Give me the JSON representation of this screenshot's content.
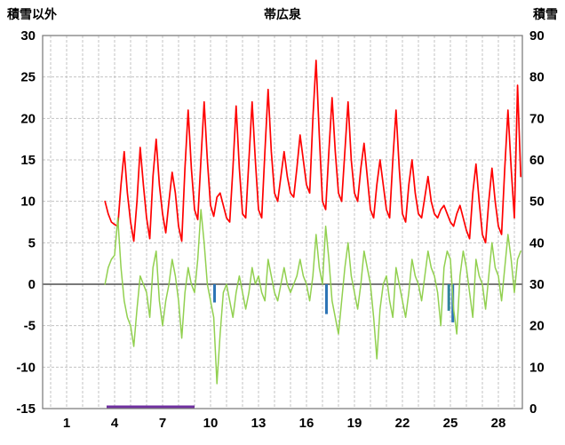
{
  "header": {
    "left_axis_title": "積雪以外",
    "chart_title": "帯広泉",
    "right_axis_title": "積雪"
  },
  "chart_data": {
    "type": "line",
    "title": "帯広泉",
    "grid": true,
    "grid_color": "#c3c3c3",
    "border_color": "#7f7f7f",
    "zero_line_color": "#4d4d4d",
    "left_axis": {
      "label": "積雪以外",
      "min": -15,
      "max": 30,
      "tick_step": 5,
      "ticks": [
        30,
        25,
        20,
        15,
        10,
        5,
        0,
        -5,
        -10,
        -15
      ]
    },
    "right_axis": {
      "label": "積雪",
      "min": 0,
      "max": 90,
      "tick_step": 10,
      "ticks": [
        90,
        80,
        70,
        60,
        50,
        40,
        30,
        20,
        10,
        0
      ]
    },
    "x_axis": {
      "min": -0.5,
      "max": 29.5,
      "gridline_step": 1,
      "tick_labels": [
        1,
        4,
        7,
        10,
        13,
        16,
        19,
        22,
        25,
        28
      ]
    },
    "series": [
      {
        "name": "red-temperature-line",
        "color": "#ff0000",
        "width": 1.7,
        "axis": "left",
        "x_start": 3.4,
        "x_step": 0.2,
        "values": [
          10,
          8.5,
          7.5,
          7.2,
          7,
          12,
          16,
          11,
          7.5,
          5.2,
          10,
          16.5,
          12,
          8,
          5.5,
          13,
          17.5,
          12,
          8.5,
          6.2,
          10,
          13.5,
          11,
          7,
          5.2,
          14,
          21,
          14,
          9,
          7.8,
          15,
          22,
          15,
          9.5,
          8.2,
          10.5,
          11,
          9.5,
          8,
          7.5,
          14,
          21.5,
          14,
          8.5,
          8,
          15,
          22,
          15,
          9,
          8,
          16,
          23.5,
          16,
          11,
          10,
          13,
          16,
          13,
          11,
          10.5,
          14,
          18,
          15,
          12,
          11,
          20,
          27,
          18,
          10,
          9,
          16,
          22.5,
          16,
          11,
          10,
          16,
          22,
          15,
          11,
          10,
          14,
          17,
          13,
          9,
          8,
          12,
          15,
          12,
          9,
          8,
          15,
          21,
          14,
          8.5,
          7.5,
          12,
          15,
          11,
          8.5,
          8,
          10.5,
          13,
          10,
          8.5,
          8,
          9,
          9.5,
          8.5,
          7.5,
          7,
          8.5,
          9.5,
          8,
          6.5,
          5.5,
          11,
          14.5,
          10,
          6,
          5,
          10,
          14,
          10,
          7,
          6,
          14,
          21,
          14,
          8,
          24,
          13
        ]
      },
      {
        "name": "green-line",
        "color": "#92d050",
        "width": 1.5,
        "axis": "left",
        "x_start": 3.4,
        "x_step": 0.2,
        "values": [
          0,
          2,
          3,
          3.5,
          8,
          2,
          -2,
          -4,
          -5,
          -7.5,
          -3,
          1,
          0,
          -1,
          -4,
          2,
          4,
          -2,
          -5,
          -2,
          0,
          3,
          1,
          -2,
          -6.5,
          -1,
          2,
          0,
          -1,
          3,
          9,
          5,
          0,
          -2,
          -4,
          -12,
          -6,
          -1,
          0,
          -2,
          -4,
          -1,
          1,
          -1,
          -3,
          -1,
          2,
          0,
          1,
          -1,
          -2,
          3,
          1,
          -1,
          -2,
          0,
          2,
          0,
          -1,
          0,
          1,
          3,
          1,
          0,
          -2,
          1,
          6,
          2,
          0,
          7,
          3,
          -2,
          -4,
          -6,
          -2,
          2,
          5,
          1,
          -1,
          -3,
          0,
          4,
          2,
          0,
          -4,
          -9,
          -3,
          0,
          1,
          -2,
          -4,
          2,
          0,
          -2,
          -4,
          -1,
          3,
          1,
          0,
          -2,
          1,
          4,
          2,
          1,
          -1,
          -5,
          2,
          4,
          3,
          -3,
          -6,
          1,
          4,
          2,
          -1,
          -4,
          3,
          1,
          0,
          -3,
          1,
          5,
          2,
          1,
          -2,
          2,
          6,
          3,
          -1,
          3,
          4
        ]
      }
    ],
    "bars": [
      {
        "x": 10.25,
        "value": -2.2,
        "color": "#2e75b6"
      },
      {
        "x": 17.25,
        "value": -3.6,
        "color": "#2e75b6"
      },
      {
        "x": 24.9,
        "value": -3.2,
        "color": "#31859c"
      },
      {
        "x": 25.15,
        "value": -4.6,
        "color": "#2e75b6"
      }
    ],
    "snow_line": {
      "name": "snow-depth-line",
      "color": "#7030a0",
      "axis": "right",
      "value": 0,
      "x_from": 3.5,
      "x_to": 9.0
    }
  }
}
